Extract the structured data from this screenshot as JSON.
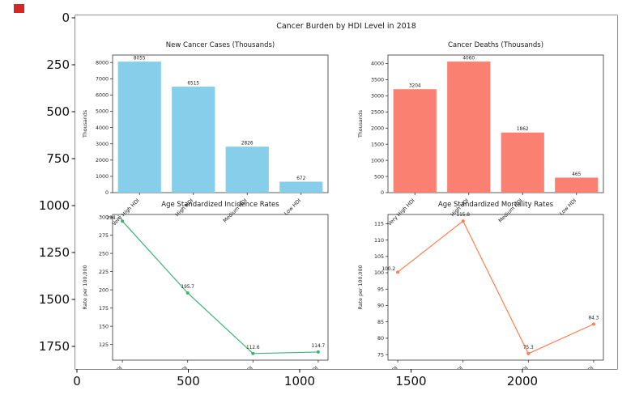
{
  "figure": {
    "suptitle": "Cancer Burden by HDI Level in 2018"
  },
  "outer_axes": {
    "y_tick_labels": [
      "0",
      "250",
      "500",
      "750",
      "1000",
      "1250",
      "1500",
      "1750"
    ],
    "x_tick_labels": [
      "0",
      "500",
      "1000",
      "1500",
      "2000"
    ]
  },
  "colors": {
    "cases_bar": "#87CEEB",
    "deaths_bar": "#FA8072",
    "incidence_line": "#3CB371",
    "mortality_line": "#FF7F50",
    "marker_red": "#d62728",
    "axis_stroke": "#333333"
  },
  "chart_data": [
    {
      "id": "cases",
      "type": "bar",
      "title": "New Cancer Cases (Thousands)",
      "ylabel": "Thousands",
      "categories": [
        "Very High HDI",
        "High HDI",
        "Medium HDI",
        "Low HDI"
      ],
      "values": [
        8055,
        6515,
        2826,
        672
      ],
      "value_labels": [
        "8055",
        "6515",
        "2826",
        "672"
      ],
      "color": "#87CEEB",
      "ylim": [
        0,
        8460
      ],
      "yticks": [
        0,
        1000,
        2000,
        3000,
        4000,
        5000,
        6000,
        7000,
        8000
      ]
    },
    {
      "id": "deaths",
      "type": "bar",
      "title": "Cancer Deaths (Thousands)",
      "ylabel": "Thousands",
      "categories": [
        "Very High HDI",
        "High HDI",
        "Medium HDI",
        "Low HDI"
      ],
      "values": [
        3204,
        4060,
        1862,
        465
      ],
      "value_labels": [
        "3204",
        "4060",
        "1862",
        "465"
      ],
      "color": "#FA8072",
      "ylim": [
        0,
        4263
      ],
      "yticks": [
        0,
        500,
        1000,
        1500,
        2000,
        2500,
        3000,
        3500,
        4000
      ]
    },
    {
      "id": "incidence",
      "type": "line",
      "title": "Age Standardized Incidence Rates",
      "ylabel": "Rate per 100,000",
      "categories": [
        "Very High HDI",
        "High HDI",
        "Medium HDI",
        "Low HDI"
      ],
      "values": [
        294.3,
        195.7,
        112.6,
        114.7
      ],
      "value_labels": [
        "294.3",
        "195.7",
        "112.6",
        "114.7"
      ],
      "color": "#3CB371",
      "ylim": [
        103.5,
        303.4
      ],
      "yticks": [
        125,
        150,
        175,
        200,
        225,
        250,
        275,
        300
      ]
    },
    {
      "id": "mortality",
      "type": "line",
      "title": "Age Standardized Mortality Rates",
      "ylabel": "Rate per 100,000",
      "categories": [
        "Very High HDI",
        "High HDI",
        "Medium HDI",
        "Low HDI"
      ],
      "values": [
        100.2,
        115.8,
        75.3,
        84.3
      ],
      "value_labels": [
        "100.2",
        "115.8",
        "75.3",
        "84.3"
      ],
      "color": "#FF7F50",
      "ylim": [
        73.3,
        117.8
      ],
      "yticks": [
        75,
        80,
        85,
        90,
        95,
        100,
        105,
        110,
        115
      ]
    }
  ]
}
